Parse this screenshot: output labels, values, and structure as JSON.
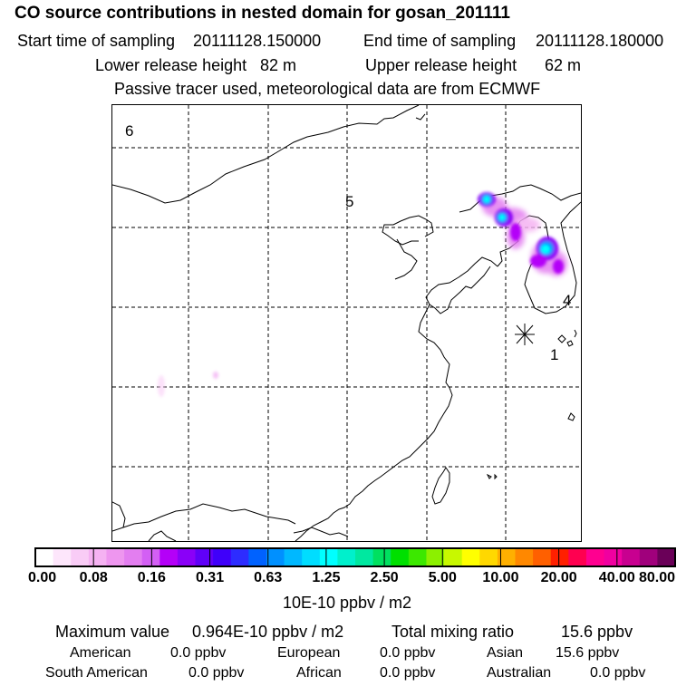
{
  "header": {
    "title": "CO  source contributions in nested domain for gosan_201111",
    "start_label": "Start time of sampling",
    "start_value": "20111128.150000",
    "end_label": "End time of sampling",
    "end_value": "20111128.180000",
    "lower_label": "Lower release height",
    "lower_value": "82 m",
    "upper_label": "Upper release height",
    "upper_value": "62 m",
    "note": "Passive tracer used, meteorological data are from ECMWF"
  },
  "map": {
    "region_labels": [
      "6",
      "5",
      "4",
      "1"
    ],
    "receptor_marker": "asterisk-receptor",
    "colors": {
      "coast": "#000000",
      "grid": "#000000"
    }
  },
  "colorbar": {
    "colors": [
      "#ffffff",
      "#fde6fb",
      "#f9ccf6",
      "#f5b2f2",
      "#ee96ef",
      "#e37ef0",
      "#d35ff4",
      "#b400f8",
      "#8a00f8",
      "#6000f8",
      "#3f00fa",
      "#2d2cff",
      "#0062ff",
      "#0090ff",
      "#00b8ff",
      "#00ddff",
      "#00ffff",
      "#00f0cc",
      "#00e8a0",
      "#00e060",
      "#00e000",
      "#3ce800",
      "#8cf000",
      "#c8f800",
      "#ffff00",
      "#ffd800",
      "#ffb000",
      "#ff8800",
      "#ff6000",
      "#ff2000",
      "#ff0050",
      "#ff0090",
      "#f000a0",
      "#c80090",
      "#a0007c",
      "#6a0058"
    ],
    "ticks": [
      "0.00",
      "0.08",
      "0.16",
      "0.31",
      "0.63",
      "1.25",
      "2.50",
      "5.00",
      "10.00",
      "20.00",
      "40.00",
      "80.00"
    ],
    "unit": "10E-10 ppbv / m2"
  },
  "footer": {
    "max_label": "Maximum value",
    "max_value": "0.964E-10 ppbv / m2",
    "total_label": "Total mixing ratio",
    "total_value": "15.6 ppbv",
    "sources": [
      {
        "name": "American",
        "value": "0.0 ppbv"
      },
      {
        "name": "European",
        "value": "0.0 ppbv"
      },
      {
        "name": "Asian",
        "value": "15.6 ppbv"
      },
      {
        "name": "South American",
        "value": "0.0 ppbv"
      },
      {
        "name": "African",
        "value": "0.0 ppbv"
      },
      {
        "name": "Australian",
        "value": "0.0 ppbv"
      }
    ]
  }
}
